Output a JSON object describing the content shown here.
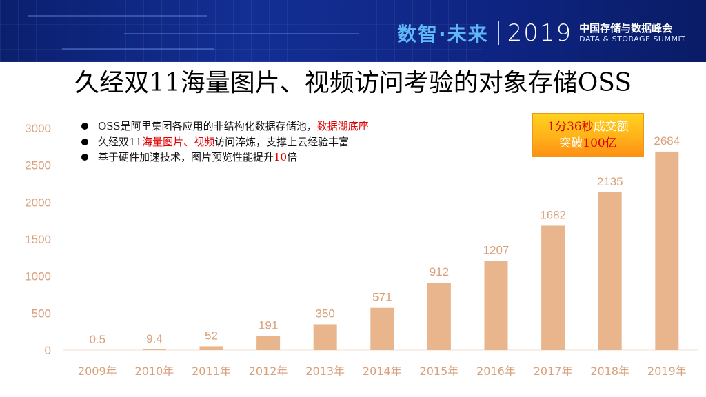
{
  "banner": {
    "brand_cn": "数智·未来",
    "year": "2019",
    "summit_cn": "中国存储与数据峰会",
    "summit_en": "DATA & STORAGE SUMMIT"
  },
  "slide": {
    "title": "久经双11海量图片、视频访问考验的对象存储OSS",
    "bullets": [
      {
        "parts": [
          {
            "text": "OSS是阿里集团各应用的非结构化数据存储池，",
            "red": false
          },
          {
            "text": "数据湖底座",
            "red": true
          }
        ]
      },
      {
        "parts": [
          {
            "text": "久经双11",
            "red": false
          },
          {
            "text": "海量图片、视频",
            "red": true
          },
          {
            "text": "访问淬炼，支撑上云经验丰富",
            "red": false
          }
        ]
      },
      {
        "parts": [
          {
            "text": "基于硬件加速技术，图片预览性能提升",
            "red": false
          },
          {
            "text": "10",
            "red": true
          },
          {
            "text": "倍",
            "red": false
          }
        ]
      }
    ],
    "callout": {
      "line1": [
        {
          "text": "1分36秒",
          "red": true
        },
        {
          "text": "成交额",
          "red": false
        }
      ],
      "line2": [
        {
          "text": "突破",
          "red": false
        },
        {
          "text": "100亿",
          "red": true
        }
      ]
    }
  },
  "colors": {
    "bar": "#e8b58d",
    "axis_text": "#d9a07a",
    "highlight_red": "#e00000"
  },
  "chart_data": {
    "type": "bar",
    "title": "",
    "xlabel": "",
    "ylabel": "",
    "categories": [
      "2009年",
      "2010年",
      "2011年",
      "2012年",
      "2013年",
      "2014年",
      "2015年",
      "2016年",
      "2017年",
      "2018年",
      "2019年"
    ],
    "values": [
      0.5,
      9.4,
      52,
      191,
      350,
      571,
      912,
      1207,
      1682,
      2135,
      2684
    ],
    "value_labels": [
      "0.5",
      "9.4",
      "52",
      "191",
      "350",
      "571",
      "912",
      "1207",
      "1682",
      "2135",
      "2684"
    ],
    "yticks": [
      "0",
      "500",
      "1000",
      "1500",
      "2000",
      "2500",
      "3000"
    ],
    "ylim": [
      0,
      3000
    ],
    "grid": false,
    "legend": "none"
  }
}
